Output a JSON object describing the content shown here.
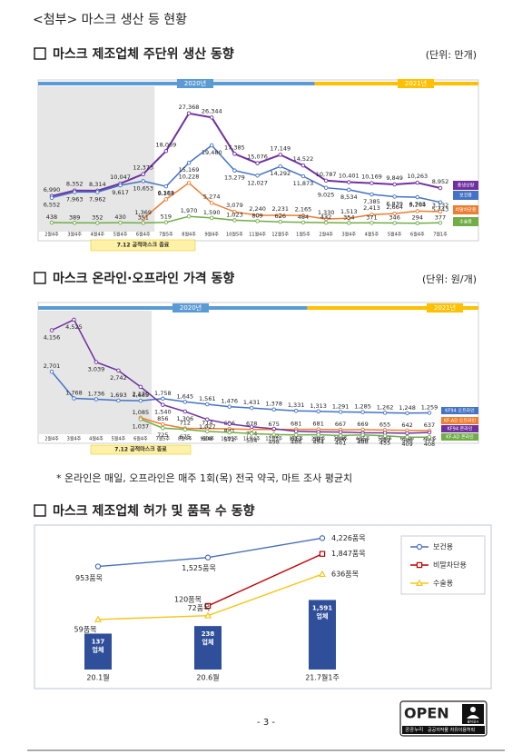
{
  "header": "<첨부> 마스크 생산 등 현황",
  "chart_data": [
    {
      "type": "line",
      "title": "마스크 제조업체 주단위 생산 동향",
      "unit": "(단위: 만개)",
      "periods": [
        {
          "label": "2020년",
          "color": "#5b9bd5"
        },
        {
          "label": "2021년",
          "color": "#ffc000"
        }
      ],
      "annotation": "7.12 공적마스크 종료",
      "categories": [
        "2월4주",
        "3월4주",
        "4월4주",
        "5월4주",
        "6월4주",
        "7월5주",
        "8월4주",
        "9월4주",
        "10월5주",
        "11월4주",
        "12월5주",
        "1월5주",
        "2월4주",
        "3월4주",
        "4월5주",
        "5월4주",
        "6월4주",
        "7월1주"
      ],
      "ylim": [
        0,
        30000
      ],
      "series": [
        {
          "name": "총생산량",
          "color": "#7030a0",
          "values": [
            6990,
            8352,
            8314,
            10047,
            12373,
            18069,
            27368,
            26344,
            17385,
            15076,
            17149,
            14522,
            10787,
            10401,
            10169,
            9849,
            10263,
            8952
          ],
          "value_labels": [
            "6,990",
            "8,352",
            "8,314",
            "10,047",
            "12,373",
            "18,069",
            "27,368",
            "26,344",
            "17,385",
            "15,076",
            "17,149",
            "14,522",
            "10,787",
            "10,401",
            "10,169",
            "9,849",
            "10,263",
            "8,952"
          ]
        },
        {
          "name": "보건용",
          "color": "#4472c4",
          "values": [
            6552,
            7963,
            7962,
            9617,
            10653,
            9368,
            15169,
            19480,
            13279,
            12027,
            14292,
            11873,
            9025,
            8534,
            7385,
            6839,
            6705,
            5443
          ],
          "value_labels": [
            "6,552",
            "7,963",
            "7,962",
            "9,617",
            "10,653",
            "9,368",
            "15,169",
            "19,480",
            "13,279",
            "12,027",
            "14,292",
            "11,873",
            "9,025",
            "8,534",
            "7,385",
            "6,839",
            "6,705",
            "5,443"
          ]
        },
        {
          "name": "비말차단용",
          "color": "#ed7d31",
          "values": [
            null,
            null,
            null,
            null,
            1369,
            6181,
            10228,
            5274,
            3079,
            2240,
            2231,
            2165,
            1330,
            1513,
            2413,
            2664,
            3264,
            3132
          ],
          "value_labels": [
            null,
            null,
            null,
            null,
            "1,369",
            "6,181",
            "10,228",
            "5,274",
            "3,079",
            "2,240",
            "2,231",
            "2,165",
            "1,330",
            "1,513",
            "2,413",
            "2,664",
            "3,264",
            "3,132"
          ]
        },
        {
          "name": "수술용",
          "color": "#70ad47",
          "values": [
            438,
            389,
            352,
            430,
            351,
            519,
            1970,
            1590,
            1023,
            809,
            626,
            484,
            432,
            354,
            371,
            346,
            294,
            377
          ],
          "value_labels": [
            "438",
            "389",
            "352",
            "430",
            "351",
            "519",
            "1,970",
            "1,590",
            "1,023",
            "809",
            "626",
            "484",
            "432",
            "354",
            "371",
            "346",
            "294",
            "377"
          ]
        }
      ]
    },
    {
      "type": "line",
      "title": "마스크 온라인·오프라인 가격 동향",
      "unit": "(단위: 원/개)",
      "periods": [
        {
          "label": "2020년",
          "color": "#5b9bd5"
        },
        {
          "label": "2021년",
          "color": "#ffc000"
        }
      ],
      "annotation": "7.12 공적마스크 종료",
      "categories": [
        "2월4주",
        "3월4주",
        "4월4주",
        "5월4주",
        "6월4주",
        "7월5주",
        "8월4주",
        "9월4주",
        "10월5주",
        "11월4주",
        "12월5주",
        "1월5주",
        "2월4주",
        "3월4주",
        "4월5주",
        "5월4주",
        "6월4주",
        "7월1주"
      ],
      "ylim": [
        0,
        5000
      ],
      "series": [
        {
          "name": "KF94 오프라인",
          "color": "#4472c4",
          "values": [
            2701,
            1768,
            1736,
            1693,
            1685,
            1758,
            1645,
            1561,
            1476,
            1431,
            1378,
            1331,
            1313,
            1291,
            1285,
            1262,
            1248,
            1259
          ],
          "value_labels": [
            "2,701",
            "1,768",
            "1,736",
            "1,693",
            "1,685",
            "1,758",
            "1,645",
            "1,561",
            "1,476",
            "1,431",
            "1,378",
            "1,331",
            "1,313",
            "1,291",
            "1,285",
            "1,262",
            "1,248",
            "1,259"
          ]
        },
        {
          "name": "KF-AD 오프라인",
          "color": "#ed7d31",
          "values": [
            null,
            null,
            null,
            null,
            1085,
            856,
            712,
            714,
            696,
            678,
            675,
            681,
            681,
            667,
            669,
            655,
            642,
            637
          ],
          "value_labels": [
            null,
            null,
            null,
            null,
            "1,085",
            "856",
            "712",
            "714",
            "696",
            "678",
            "675",
            "681",
            "681",
            "667",
            "669",
            "655",
            "642",
            "637"
          ]
        },
        {
          "name": "KF94 온라인",
          "color": "#7030a0",
          "values": [
            4156,
            4525,
            3039,
            2742,
            2170,
            1540,
            1306,
            1027,
            871,
            774,
            702,
            613,
            591,
            586,
            560,
            557,
            546,
            571
          ],
          "value_labels": [
            "4,156",
            "4,525",
            "3,039",
            "2,742",
            "2,170",
            "1,540",
            "1,306",
            "1,027",
            "871",
            "774",
            "702",
            "613",
            "591",
            "586",
            "560",
            "557",
            "546",
            "571"
          ]
        },
        {
          "name": "KF-AD 온라인",
          "color": "#70ad47",
          "values": [
            null,
            null,
            null,
            null,
            1037,
            725,
            675,
            608,
            572,
            534,
            498,
            486,
            494,
            461,
            488,
            455,
            409,
            408
          ],
          "value_labels": [
            null,
            null,
            null,
            null,
            "1,037",
            "725",
            "675",
            "608",
            "572",
            "534",
            "498",
            "486",
            "494",
            "461",
            "488",
            "455",
            "409",
            "408"
          ]
        }
      ]
    },
    {
      "type": "combo",
      "title": "마스크 제조업체 허가 및 품목 수 동향",
      "legend": "upper right",
      "categories": [
        "20.1월",
        "20.6월",
        "21.7월1주"
      ],
      "bars": {
        "color": "#2f4f9a",
        "values": [
          137,
          238,
          1591
        ],
        "value_labels": [
          "137 업체",
          "238 업체",
          "1,591 업체"
        ]
      },
      "ylim": [
        10,
        2000
      ],
      "ylog": true,
      "y2lim": [
        40,
        6000
      ],
      "y2log": true,
      "series": [
        {
          "name": "보건용",
          "color": "#4a6fb5",
          "axis": "y2",
          "values": [
            953,
            1525,
            4226
          ],
          "value_labels": [
            "953품목",
            "1,525품목",
            "4,226품목"
          ]
        },
        {
          "name": "비말차단용",
          "color": "#c00000",
          "axis": "y2",
          "values": [
            null,
            120,
            1847
          ],
          "value_labels": [
            null,
            "120품목",
            "1,847품목"
          ]
        },
        {
          "name": "수술용",
          "color": "#f5c518",
          "axis": "y2",
          "values": [
            59,
            72,
            636
          ],
          "value_labels": [
            "59품목",
            "72품목",
            "636품목"
          ]
        }
      ]
    }
  ],
  "footnote": "* 온라인은 매일, 오프라인은 매주 1회(목) 전국 약국, 마트 조사 평균치",
  "page_number": "- 3 -",
  "logo": {
    "title": "OPEN",
    "mark": "출처표시",
    "brand": "공공누리",
    "text": "공공저작물 자유이용허락"
  }
}
